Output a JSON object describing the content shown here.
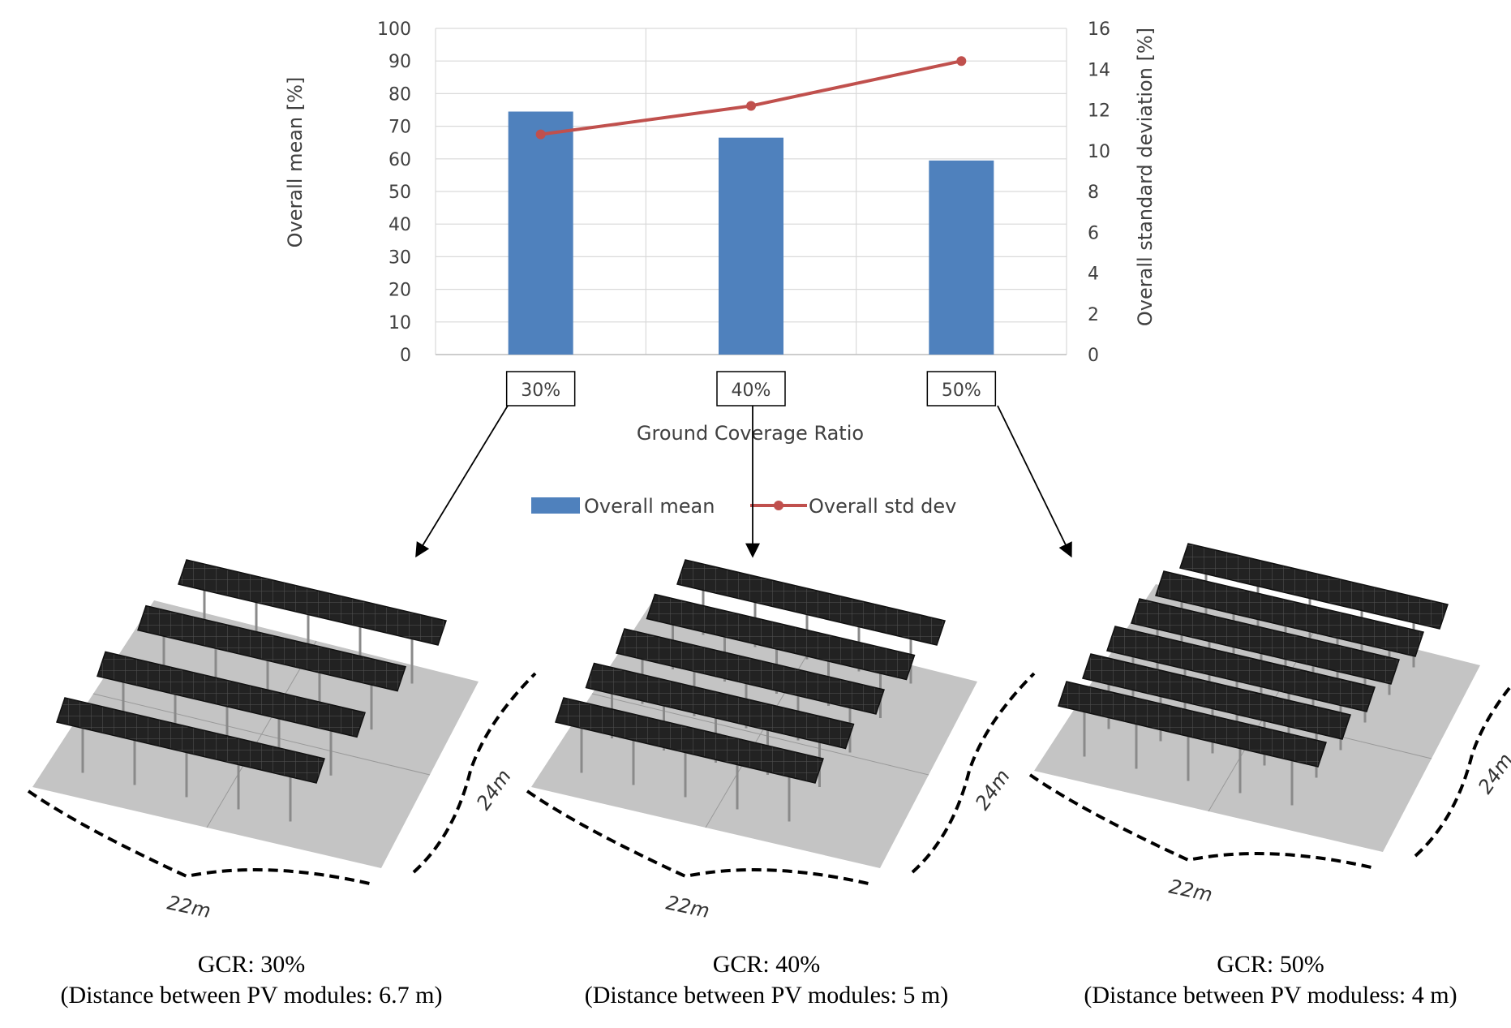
{
  "chart_data": {
    "type": "bar+line",
    "categories": [
      "30%",
      "40%",
      "50%"
    ],
    "xlabel": "Ground Coverage Ratio",
    "series": [
      {
        "name": "Overall mean",
        "type": "bar",
        "axis": "left",
        "color": "#4f81bd",
        "values": [
          74.5,
          66.5,
          59.5
        ]
      },
      {
        "name": "Overall std dev",
        "type": "line",
        "axis": "right",
        "color": "#c0504d",
        "values": [
          10.8,
          12.2,
          14.4
        ]
      }
    ],
    "y_left": {
      "label": "Overall mean [%]",
      "ylim": [
        0,
        100
      ],
      "ticks": [
        "0",
        "10",
        "20",
        "30",
        "40",
        "50",
        "60",
        "70",
        "80",
        "90",
        "100"
      ]
    },
    "y_right": {
      "label": "Overall standard deviation [%]",
      "ylim": [
        0,
        16
      ],
      "ticks": [
        "0",
        "2",
        "4",
        "6",
        "8",
        "10",
        "12",
        "14",
        "16"
      ]
    },
    "grid": true,
    "legend_position": "bottom"
  },
  "panels": [
    {
      "rows": 4,
      "width_label": "22m",
      "depth_label": "24m",
      "gcr": "GCR: 30%",
      "distance": "(Distance between PV modules: 6.7 m)"
    },
    {
      "rows": 5,
      "width_label": "22m",
      "depth_label": "24m",
      "gcr": "GCR: 40%",
      "distance": "(Distance between PV modules: 5 m)"
    },
    {
      "rows": 6,
      "width_label": "22m",
      "depth_label": "24m",
      "gcr": "GCR: 50%",
      "distance": "(Distance between PV moduless: 4 m)"
    }
  ],
  "colors": {
    "ground": "#c4c4c4",
    "panel": "#1e1e1e",
    "grid": "#d9d9d9"
  }
}
